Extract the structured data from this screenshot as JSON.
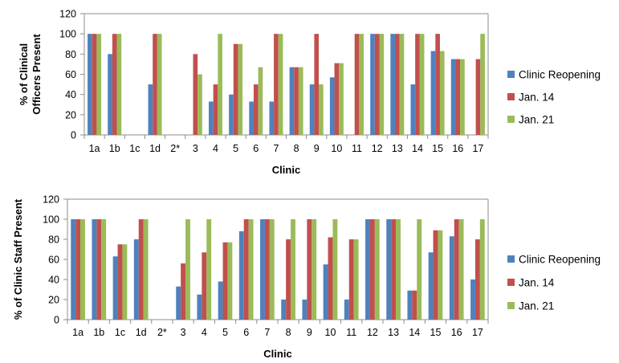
{
  "chart_data": [
    {
      "type": "bar",
      "title": "",
      "xlabel": "Clinic",
      "ylabel": "% of Clinical Officers Present",
      "ylim": [
        0,
        120
      ],
      "yticks": [
        0,
        20,
        40,
        60,
        80,
        100,
        120
      ],
      "grid": false,
      "legend_position": "right",
      "categories": [
        "1a",
        "1b",
        "1c",
        "1d",
        "2*",
        "3",
        "4",
        "5",
        "6",
        "7",
        "8",
        "9",
        "10",
        "11",
        "12",
        "13",
        "14",
        "15",
        "16",
        "17"
      ],
      "series": [
        {
          "name": "Clinic Reopening",
          "color": "#4f81bd",
          "values": [
            100,
            80,
            0,
            50,
            0,
            0,
            33,
            40,
            33,
            33,
            67,
            50,
            57,
            0,
            100,
            100,
            50,
            83,
            75,
            0
          ]
        },
        {
          "name": "Jan. 14",
          "color": "#c0504d",
          "values": [
            100,
            100,
            0,
            100,
            0,
            80,
            50,
            90,
            50,
            100,
            67,
            100,
            71,
            100,
            100,
            100,
            100,
            100,
            75,
            75
          ]
        },
        {
          "name": "Jan. 21",
          "color": "#9bbb59",
          "values": [
            100,
            100,
            0,
            100,
            0,
            60,
            100,
            90,
            67,
            100,
            67,
            50,
            71,
            100,
            100,
            100,
            100,
            83,
            75,
            100
          ]
        }
      ]
    },
    {
      "type": "bar",
      "title": "",
      "xlabel": "Clinic",
      "ylabel": "% of Clinic Staff Present",
      "ylim": [
        0,
        120
      ],
      "yticks": [
        0,
        20,
        40,
        60,
        80,
        100,
        120
      ],
      "grid": false,
      "legend_position": "right",
      "categories": [
        "1a",
        "1b",
        "1c",
        "1d",
        "2*",
        "3",
        "4",
        "5",
        "6",
        "7",
        "8",
        "9",
        "10",
        "11",
        "12",
        "13",
        "14",
        "15",
        "16",
        "17"
      ],
      "series": [
        {
          "name": "Clinic Reopening",
          "color": "#4f81bd",
          "values": [
            100,
            100,
            63,
            80,
            0,
            33,
            25,
            38,
            88,
            100,
            20,
            20,
            55,
            20,
            100,
            100,
            29,
            67,
            83,
            40
          ]
        },
        {
          "name": "Jan. 14",
          "color": "#c0504d",
          "values": [
            100,
            100,
            75,
            100,
            0,
            56,
            67,
            77,
            100,
            100,
            80,
            100,
            82,
            80,
            100,
            100,
            29,
            89,
            100,
            80
          ]
        },
        {
          "name": "Jan. 21",
          "color": "#9bbb59",
          "values": [
            100,
            100,
            75,
            100,
            0,
            100,
            100,
            77,
            100,
            100,
            100,
            100,
            100,
            80,
            100,
            100,
            100,
            89,
            100,
            100
          ]
        }
      ]
    }
  ]
}
